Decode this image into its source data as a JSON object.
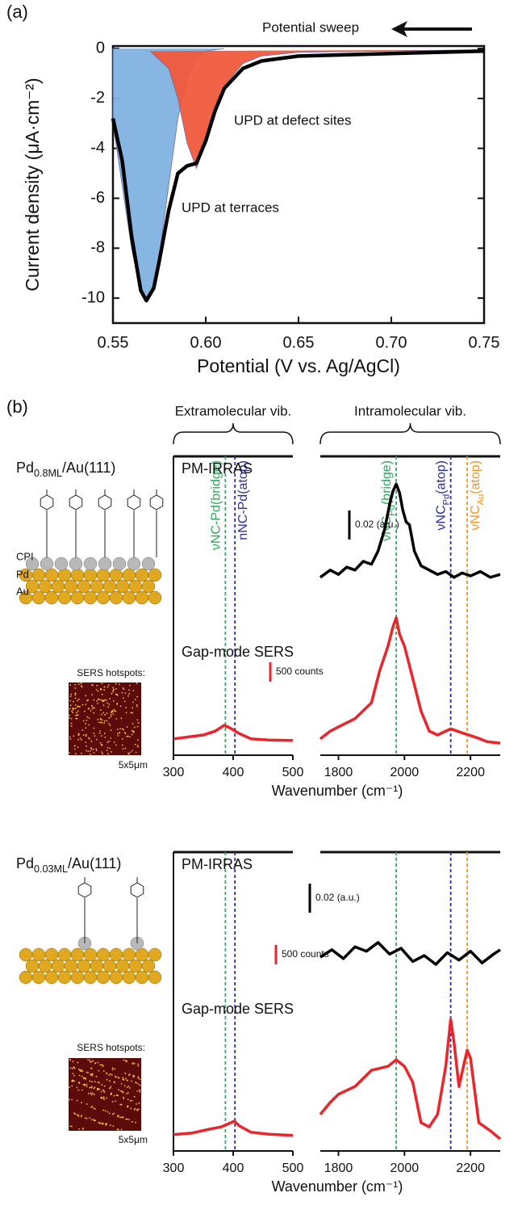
{
  "panel_labels": [
    "(a)",
    "(b)"
  ],
  "brackets": [
    "Extramolecular vib.",
    "Intramolecular vib."
  ],
  "samples": [
    {
      "name": {
        "text": "Pd",
        "sub": "0.8ML",
        "tail": "/Au(111)"
      },
      "layer_labels": [
        "CPI",
        "Pd",
        "Au"
      ],
      "hotspots_label": "SERS hotspots:",
      "image_size": "5x5μm"
    },
    {
      "name": {
        "text": "Pd",
        "sub": "0.03ML",
        "tail": "/Au(111)"
      },
      "hotspots_label": "SERS hotspots:",
      "image_size": "5x5μm"
    }
  ],
  "chart_data": [
    {
      "type": "line",
      "xlabel": "Potential (V vs. Ag/AgCl)",
      "ylabel": "Current density (μA·cm⁻²)",
      "annotations": [
        "Potential sweep",
        "UPD at defect sites",
        "UPD at terraces"
      ],
      "xlim": [
        0.55,
        0.75
      ],
      "ylim": [
        -11,
        0.1
      ],
      "xticks": [
        0.55,
        {
          "value": 0.6,
          "label": "0.60"
        },
        0.65,
        {
          "value": 0.7,
          "label": "0.70"
        },
        0.75
      ],
      "yticks": [
        0,
        -2,
        -4,
        -6,
        -8,
        -10
      ],
      "series": [
        {
          "color": "#7fb2df",
          "fill": true,
          "x": [
            0.55,
            0.55,
            0.555,
            0.56,
            0.565,
            0.568,
            0.572,
            0.575,
            0.58,
            0.585,
            0.59,
            0.595,
            0.6,
            0.61
          ],
          "values": [
            0,
            -3.0,
            -5.5,
            -8.0,
            -9.8,
            -10.1,
            -9.5,
            -8.3,
            -5.5,
            -2.8,
            -1.2,
            -0.4,
            -0.1,
            0
          ]
        },
        {
          "color": "#f05a3c",
          "fill": true,
          "x": [
            0.57,
            0.58,
            0.585,
            0.59,
            0.595,
            0.6,
            0.605,
            0.61,
            0.62,
            0.63,
            0.65,
            0.7,
            0.75
          ],
          "values": [
            -0.1,
            -0.8,
            -2.0,
            -3.8,
            -4.8,
            -3.8,
            -2.5,
            -1.5,
            -0.6,
            -0.3,
            -0.15,
            -0.1,
            -0.05
          ]
        },
        {
          "color": "#000000",
          "x": [
            0.55,
            0.555,
            0.56,
            0.565,
            0.568,
            0.572,
            0.575,
            0.58,
            0.585,
            0.59,
            0.595,
            0.6,
            0.605,
            0.61,
            0.62,
            0.63,
            0.65,
            0.7,
            0.75
          ],
          "values": [
            -2.8,
            -4.5,
            -7.5,
            -9.7,
            -10.1,
            -9.6,
            -8.5,
            -6.5,
            -5.0,
            -4.7,
            -4.6,
            -3.7,
            -2.5,
            -1.6,
            -0.8,
            -0.5,
            -0.3,
            -0.2,
            -0.1
          ]
        }
      ]
    },
    {
      "type": "line",
      "xlabel": "Wavenumber (cm⁻¹)",
      "xlim": [
        300,
        500
      ],
      "ylim": [
        0,
        7700
      ],
      "xticks": [
        300,
        400,
        500
      ],
      "vlines": [
        {
          "x": 387,
          "color": "#2eaa5c",
          "label": {
            "text": "νNC-Pd(bridge)"
          }
        },
        {
          "x": 403,
          "color": "#2b2e9c",
          "label": {
            "text": "nNC-Pd(atop)"
          }
        }
      ],
      "scale_bars": [
        {
          "value": 500,
          "label": "500 counts",
          "axis": "y",
          "color": "#e8262b"
        }
      ],
      "series": [
        {
          "color": "#e8262b",
          "x": [
            300,
            330,
            350,
            370,
            385,
            395,
            410,
            430,
            460,
            500
          ],
          "values": [
            420,
            480,
            520,
            620,
            770,
            700,
            560,
            420,
            390,
            380
          ]
        }
      ]
    },
    {
      "type": "line",
      "xlim": [
        1745,
        2290
      ],
      "ylim": [
        0,
        7700
      ],
      "y2lim": [
        0,
        0.205
      ],
      "xticks": [
        1800,
        2000,
        2200
      ],
      "vlines": [
        {
          "x": 1975,
          "color": "#2eaa5c",
          "label": {
            "text": "νNC",
            "sub": "Pd",
            "tail": "(bridge)"
          }
        },
        {
          "x": 2140,
          "color": "#2b2e9c",
          "label": {
            "text": "νNC",
            "sub": "Pd",
            "tail": "(atop)"
          }
        },
        {
          "x": 2190,
          "color": "#f7941d",
          "label": {
            "text": "νNC",
            "sub": "Au",
            "tail": "(atop)"
          }
        }
      ],
      "scale_bars": [
        {
          "value": 0.02,
          "label": "0.02 (a.u.)",
          "axis": "y2",
          "color": "#000000"
        }
      ],
      "series": [
        {
          "name": "PM-IRRAS",
          "color": "#000000",
          "axis": "y2",
          "x": [
            1745,
            1775,
            1800,
            1825,
            1850,
            1875,
            1900,
            1920,
            1940,
            1955,
            1965,
            1975,
            1985,
            1995,
            2005,
            2015,
            2030,
            2050,
            2075,
            2100,
            2125,
            2150,
            2175,
            2200,
            2230,
            2260,
            2290
          ],
          "values": [
            0.122,
            0.127,
            0.124,
            0.129,
            0.127,
            0.133,
            0.131,
            0.14,
            0.155,
            0.172,
            0.181,
            0.186,
            0.18,
            0.168,
            0.16,
            0.158,
            0.14,
            0.13,
            0.127,
            0.124,
            0.126,
            0.122,
            0.125,
            0.123,
            0.126,
            0.122,
            0.124
          ]
        },
        {
          "name": "Gap-mode SERS",
          "color": "#e8262b",
          "x": [
            1745,
            1775,
            1800,
            1850,
            1900,
            1925,
            1950,
            1965,
            1975,
            1985,
            2000,
            2025,
            2050,
            2075,
            2100,
            2140,
            2180,
            2220,
            2250,
            2290
          ],
          "values": [
            420,
            620,
            730,
            940,
            1350,
            2180,
            2810,
            3300,
            3540,
            3120,
            2810,
            1980,
            1140,
            620,
            520,
            680,
            560,
            450,
            350,
            310
          ]
        }
      ]
    },
    {
      "type": "line",
      "xlabel": "Wavenumber (cm⁻¹)",
      "xlim": [
        300,
        500
      ],
      "ylim": [
        0,
        7700
      ],
      "xticks": [
        300,
        400,
        500
      ],
      "vlines": [
        {
          "x": 387,
          "color": "#2eaa5c"
        },
        {
          "x": 403,
          "color": "#2b2e9c"
        }
      ],
      "scale_bars": [
        {
          "value": 500,
          "label": "500 counts",
          "axis": "y",
          "color": "#e8262b"
        }
      ],
      "series": [
        {
          "color": "#e8262b",
          "x": [
            300,
            330,
            360,
            380,
            395,
            402,
            410,
            430,
            460,
            500
          ],
          "values": [
            420,
            460,
            560,
            620,
            720,
            770,
            650,
            480,
            430,
            400
          ]
        }
      ]
    },
    {
      "type": "line",
      "xlim": [
        1745,
        2290
      ],
      "ylim": [
        0,
        7700
      ],
      "y2lim": [
        0,
        0.205
      ],
      "xticks": [
        1800,
        2000,
        2200
      ],
      "vlines": [
        {
          "x": 1975,
          "color": "#2eaa5c"
        },
        {
          "x": 2140,
          "color": "#2b2e9c"
        },
        {
          "x": 2190,
          "color": "#f7941d"
        }
      ],
      "scale_bars": [
        {
          "value": 0.02,
          "label": "0.02 (a.u.)",
          "axis": "y2",
          "color": "#000000"
        }
      ],
      "series": [
        {
          "name": "PM-IRRAS",
          "color": "#000000",
          "axis": "y2",
          "x": [
            1745,
            1780,
            1815,
            1850,
            1885,
            1920,
            1955,
            1990,
            2025,
            2060,
            2095,
            2130,
            2165,
            2200,
            2235,
            2270,
            2290
          ],
          "values": [
            0.133,
            0.138,
            0.132,
            0.14,
            0.137,
            0.143,
            0.135,
            0.139,
            0.13,
            0.134,
            0.128,
            0.136,
            0.131,
            0.137,
            0.129,
            0.135,
            0.138
          ]
        },
        {
          "name": "Gap-mode SERS",
          "color": "#e8262b",
          "x": [
            1745,
            1775,
            1800,
            1850,
            1900,
            1950,
            1975,
            2000,
            2025,
            2050,
            2075,
            2100,
            2125,
            2140,
            2150,
            2165,
            2180,
            2190,
            2200,
            2225,
            2260,
            2290
          ],
          "values": [
            940,
            1250,
            1460,
            1660,
            2080,
            2180,
            2350,
            2180,
            1770,
            730,
            620,
            940,
            2180,
            3390,
            2810,
            1660,
            2230,
            2600,
            2390,
            730,
            520,
            310
          ]
        }
      ]
    }
  ]
}
